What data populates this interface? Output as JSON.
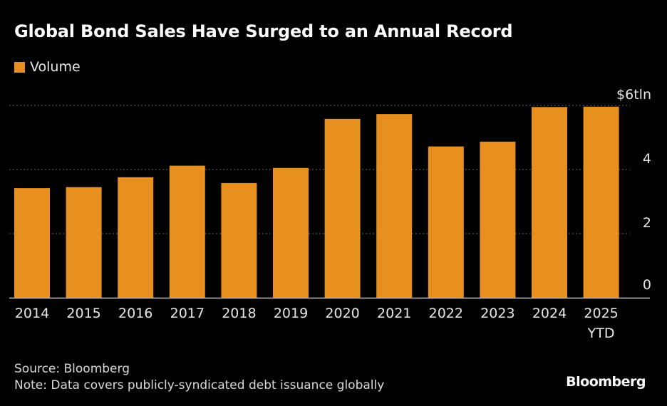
{
  "colors": {
    "background": "#000000",
    "bar": "#E8901F",
    "grid": "#666666",
    "text": "#E6E6E6"
  },
  "header": {
    "title": "Global Bond Sales Have Surged to an Annual Record"
  },
  "legend": {
    "label": "Volume"
  },
  "chart_data": {
    "type": "bar",
    "title": "Global Bond Sales Have Surged to an Annual Record",
    "xlabel": "",
    "ylabel": "",
    "unit_label": "$6tln",
    "categories": [
      "2014",
      "2015",
      "2016",
      "2017",
      "2018",
      "2019",
      "2020",
      "2021",
      "2022",
      "2023",
      "2024",
      "2025"
    ],
    "category_sublabels": [
      "",
      "",
      "",
      "",
      "",
      "",
      "",
      "",
      "",
      "",
      "",
      "YTD"
    ],
    "series": [
      {
        "name": "Volume",
        "values": [
          3.42,
          3.45,
          3.76,
          4.12,
          3.58,
          4.05,
          5.58,
          5.73,
          4.72,
          4.87,
          5.95,
          5.96
        ]
      }
    ],
    "yticks": [
      0,
      2,
      4,
      6
    ],
    "ytick_labels": [
      "0",
      "2",
      "4",
      "$6tln"
    ],
    "ylim": [
      0,
      6
    ],
    "grid": true,
    "legend_position": "top-left"
  },
  "footer": {
    "source": "Source: Bloomberg",
    "note": "Note: Data covers publicly-syndicated debt issuance globally",
    "brand": "Bloomberg"
  }
}
